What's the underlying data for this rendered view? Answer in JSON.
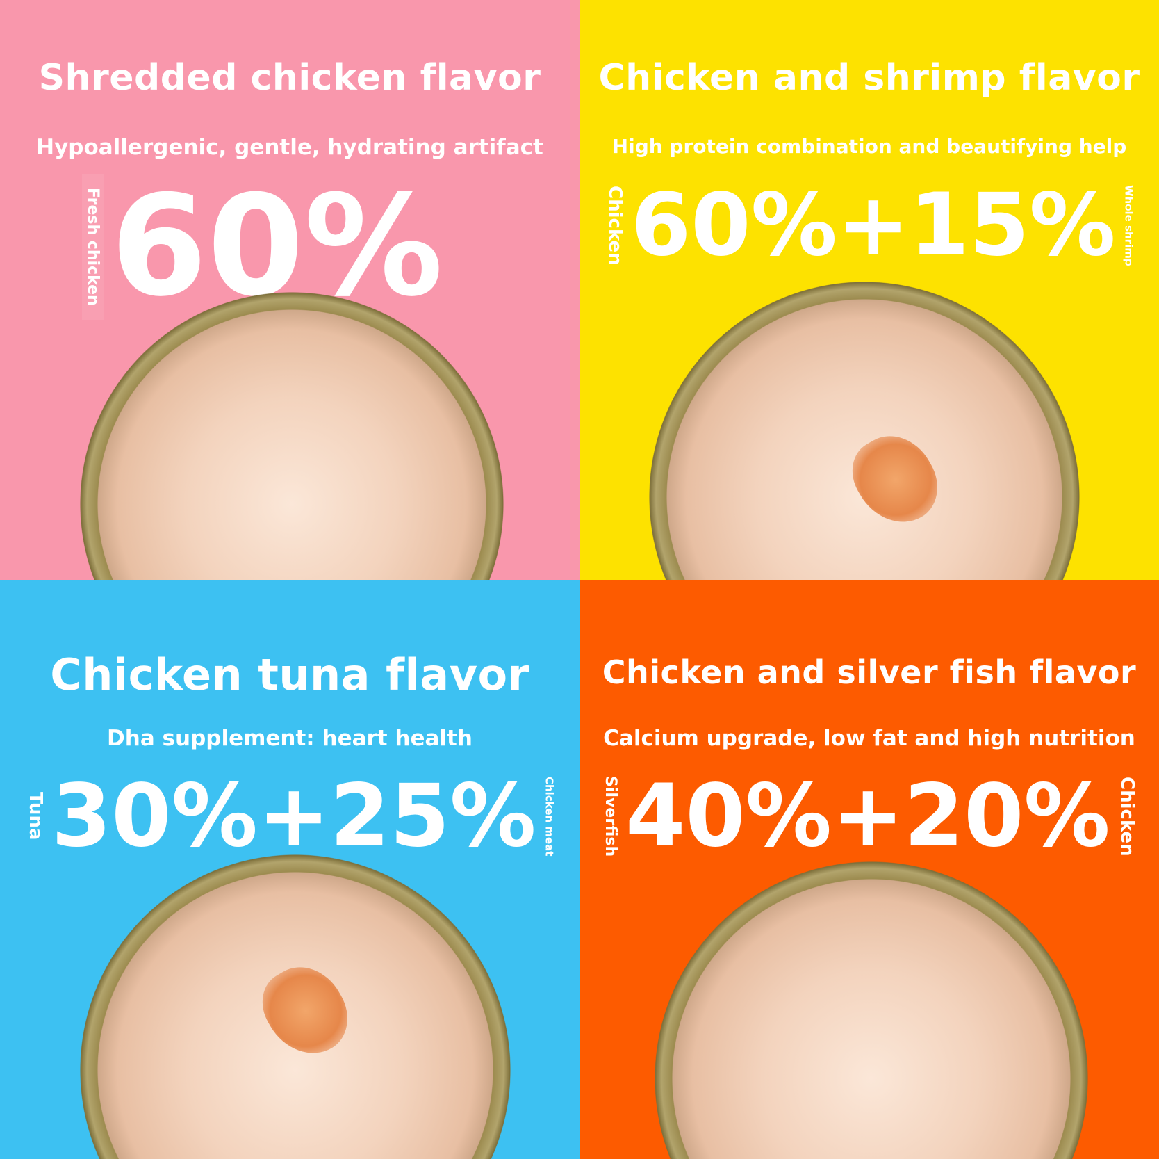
{
  "colors": {
    "pink": "#f997ac",
    "yellow": "#fde200",
    "blue": "#3dc1f2",
    "orange": "#fd5b00"
  },
  "panels": [
    {
      "title": "Shredded chicken flavor",
      "subtitle": "Hypoallergenic, gentle, hydrating artifact",
      "left_label": "Fresh chicken",
      "value": "60%"
    },
    {
      "title": "Chicken and shrimp flavor",
      "subtitle": "High protein combination and beautifying help",
      "left_label": "Chicken",
      "value": "60%+15%",
      "right_label": "Whole shrimp"
    },
    {
      "title": "Chicken tuna flavor",
      "subtitle": "Dha supplement: heart health",
      "left_label": "Tuna",
      "value": "30%+25%",
      "right_label": "Chicken meat"
    },
    {
      "title": "Chicken and silver fish flavor",
      "subtitle": "Calcium upgrade, low fat and high nutrition",
      "left_label": "Silverfish",
      "value": "40%+20%",
      "right_label": "Chicken"
    }
  ]
}
